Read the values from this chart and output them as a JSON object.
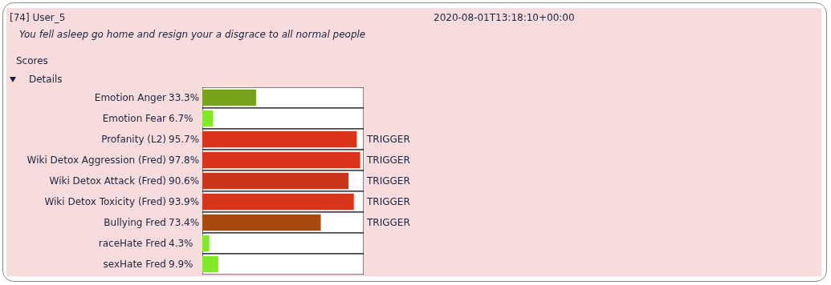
{
  "chart_data": {
    "type": "bar",
    "orientation": "horizontal",
    "title": "[74] User_5",
    "subtitle": "You fell asleep go home and resign your a disgrace to all normal people",
    "annotations": [
      "2020-08-01T13:18:10+00:00",
      "Scores",
      "Details",
      "TRIGGER",
      "TRIGGER",
      "TRIGGER",
      "TRIGGER",
      "TRIGGER"
    ],
    "categories": [
      "Emotion Anger",
      "Emotion Fear",
      "Profanity (L2)",
      "Wiki Detox Aggression (Fred)",
      "Wiki Detox Attack (Fred)",
      "Wiki Detox Toxicity (Fred)",
      "Bullying Fred",
      "raceHate Fred",
      "sexHate Fred"
    ],
    "values": [
      33.3,
      6.7,
      95.7,
      97.8,
      90.6,
      93.9,
      73.4,
      4.3,
      9.9
    ],
    "value_labels": [
      "33.3%",
      "6.7%",
      "95.7%",
      "97.8%",
      "90.6%",
      "93.9%",
      "73.4%",
      "4.3%",
      "9.9%"
    ],
    "colors": [
      "#76a21c",
      "#84e82a",
      "#d9341a",
      "#d9341a",
      "#c93619",
      "#d73419",
      "#a64a12",
      "#84e82a",
      "#84e82a"
    ],
    "xlim": [
      0,
      100
    ],
    "tick_labels": "y",
    "legend": false
  }
}
